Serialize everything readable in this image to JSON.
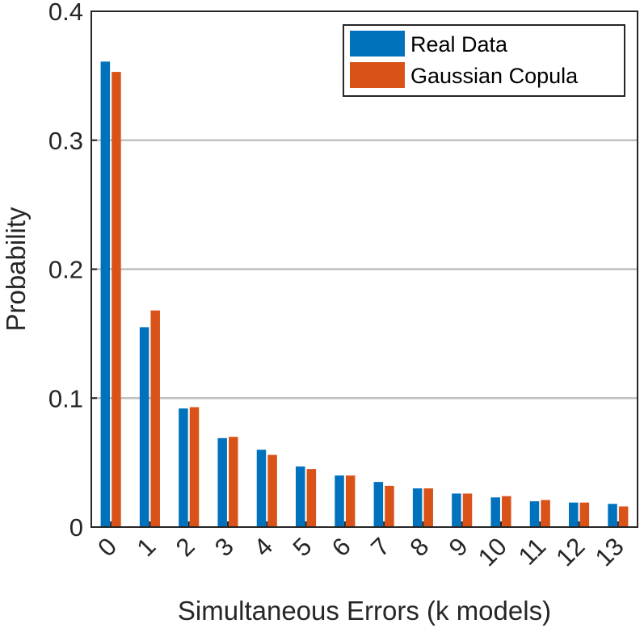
{
  "chart_data": {
    "type": "bar",
    "categories": [
      "0",
      "1",
      "2",
      "3",
      "4",
      "5",
      "6",
      "7",
      "8",
      "9",
      "10",
      "11",
      "12",
      "13"
    ],
    "series": [
      {
        "name": "Real Data",
        "color": "#0072BD",
        "values": [
          0.361,
          0.155,
          0.092,
          0.069,
          0.06,
          0.047,
          0.04,
          0.035,
          0.03,
          0.026,
          0.023,
          0.02,
          0.019,
          0.018
        ]
      },
      {
        "name": "Gaussian Copula",
        "color": "#D95319",
        "values": [
          0.353,
          0.168,
          0.093,
          0.07,
          0.056,
          0.045,
          0.04,
          0.032,
          0.03,
          0.026,
          0.024,
          0.021,
          0.019,
          0.016
        ]
      }
    ],
    "xlabel": "Simultaneous Errors (k models)",
    "ylabel": "Probability",
    "ylim": [
      0,
      0.4
    ],
    "yticks": [
      "0",
      "0.1",
      "0.2",
      "0.3",
      "0.4"
    ],
    "ytick_values": [
      0,
      0.1,
      0.2,
      0.3,
      0.4
    ],
    "grid": "horizontal",
    "legend_position": "top-right"
  }
}
